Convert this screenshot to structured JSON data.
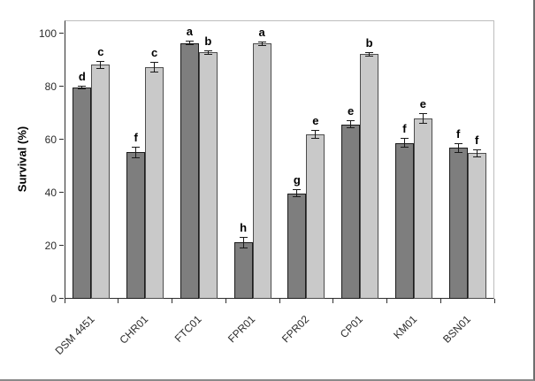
{
  "page": {
    "background": "#ffffff",
    "border_right_color": "#6e6e6e",
    "border_bottom_color": "#8a8a8a"
  },
  "chart_data": {
    "type": "bar",
    "title": "",
    "xlabel": "",
    "ylabel": "Survival (%)",
    "ylim": [
      0,
      105
    ],
    "yticks": [
      0,
      20,
      40,
      60,
      80,
      100
    ],
    "grid": false,
    "legend": "none",
    "categories": [
      "DSM 4451",
      "CHR01",
      "FTC01",
      "FPR01",
      "FPR02",
      "CP01",
      "KM01",
      "BSN01"
    ],
    "series": [
      {
        "name": "dark-gray-bars",
        "fill": "#7e7e7e",
        "border": "#1c1c1c",
        "values": [
          79.8,
          55.3,
          96.5,
          21.2,
          39.7,
          65.8,
          58.8,
          56.9
        ],
        "errors": [
          0.7,
          2.2,
          0.9,
          2.3,
          1.5,
          1.6,
          1.8,
          1.8
        ],
        "letters": [
          "d",
          "f",
          "a",
          "h",
          "g",
          "e",
          "f",
          "f"
        ]
      },
      {
        "name": "light-gray-bars",
        "fill": "#c9c9c9",
        "border": "#4d4d4d",
        "values": [
          88.2,
          87.3,
          92.9,
          96.2,
          62.1,
          92.3,
          68.0,
          54.9
        ],
        "errors": [
          1.5,
          2.0,
          0.8,
          0.8,
          1.6,
          0.8,
          2.0,
          1.5
        ],
        "letters": [
          "c",
          "c",
          "b",
          "a",
          "e",
          "b",
          "e",
          "f"
        ]
      }
    ],
    "colors": {
      "frame": "#bdbdbd",
      "axis": "#2e2e2e",
      "tick_label": "#2b2b2b",
      "error_bar": "#1a1a1a",
      "letter": "#000000"
    }
  }
}
